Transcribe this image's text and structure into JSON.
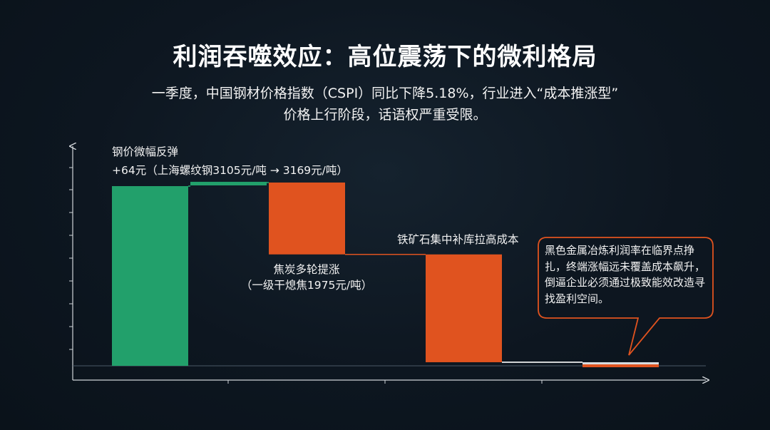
{
  "title": "利润吞噬效应：高位震荡下的微利格局",
  "subtitle_line1": "一季度，中国钢材价格指数（CSPI）同比下降5.18%，行业进入“成本推涨型”",
  "subtitle_line2": "价格上行阶段，话语权严重受限。",
  "colors": {
    "increase": "#22a06b",
    "decrease": "#e0531f",
    "connector": "#e0531f",
    "axis": "#d0d4d8",
    "callout_border": "#e0531f"
  },
  "chart_data": {
    "type": "waterfall",
    "title": "",
    "xlabel": "",
    "ylabel": "",
    "grid": false,
    "segments": [
      {
        "kind": "base",
        "color": "increase",
        "start": 0,
        "end": 100
      },
      {
        "kind": "increase",
        "color": "increase",
        "start": 100,
        "end": 102
      },
      {
        "kind": "decrease",
        "color": "decrease",
        "start": 102,
        "end": 62
      },
      {
        "kind": "decrease",
        "color": "decrease",
        "start": 62,
        "end": 2
      },
      {
        "kind": "remainder",
        "color": "residual",
        "start": 2,
        "end": 0
      }
    ],
    "annotations": {
      "rebound_line1": "钢价微幅反弹",
      "rebound_line2": "+64元（上海螺纹钢3105元/吨 → 3169元/吨）",
      "coke_line1": "焦炭多轮提涨",
      "coke_line2": "（一级干熄焦1975元/吨）",
      "iron_ore": "铁矿石集中补库拉高成本",
      "callout": "黑色金属冶炼利润率在临界点挣扎，终端涨幅远未覆盖成本飙升，倒逼企业必须通过极致能效改造寻找盈利空间。"
    }
  }
}
